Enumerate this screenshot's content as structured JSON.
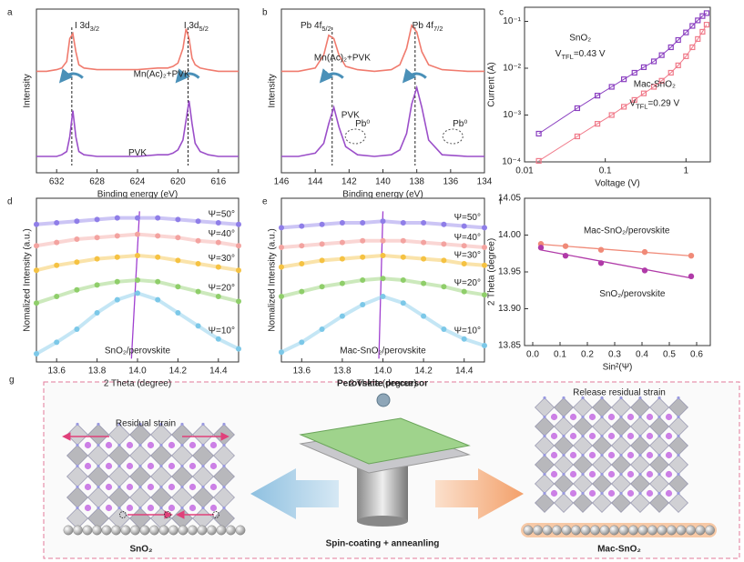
{
  "figure": {
    "panels": [
      "a",
      "b",
      "c",
      "d",
      "e",
      "f",
      "g"
    ],
    "g": {
      "left_title": "Residual strain",
      "center_title": "Perovskite precursor",
      "right_title": "Release residual strain",
      "left_caption": "SnO₂",
      "center_caption": "Spin-coating + anneanling",
      "right_caption": "Mac-SnO₂"
    }
  },
  "chart_data": [
    {
      "type": "line",
      "xlabel": "Binding energy (eV)",
      "ylabel": "Intensity",
      "xlim": [
        634,
        614
      ],
      "xticks": [
        632,
        628,
        624,
        620,
        616
      ],
      "ylim": [
        0,
        100
      ],
      "x": [
        634,
        633,
        632,
        631.5,
        631,
        630.7,
        630.4,
        630.1,
        629.8,
        629.3,
        628,
        626,
        624,
        622,
        621,
        620.5,
        620,
        619.5,
        619.2,
        618.9,
        618.6,
        618.3,
        617.8,
        617,
        616,
        614
      ],
      "series": [
        {
          "name": "Mn(Ac)₂+PVK",
          "color": "#f07b6e",
          "style": "line",
          "values": [
            62,
            62,
            63,
            64,
            68,
            82,
            85,
            74,
            66,
            64,
            63,
            63,
            63,
            64,
            64,
            65,
            67,
            76,
            88,
            82,
            70,
            66,
            64,
            63,
            62,
            62
          ]
        },
        {
          "name": "PVK",
          "color": "#9b4fc9",
          "style": "line",
          "values": [
            10,
            10,
            10,
            11,
            13,
            22,
            38,
            22,
            13,
            11,
            10,
            10,
            10,
            11,
            11,
            12,
            14,
            20,
            32,
            44,
            30,
            18,
            13,
            11,
            10,
            10
          ]
        }
      ],
      "peak_lines": [
        630.5,
        619.0
      ],
      "annotations": [
        {
          "parts": [
            "I 3d",
            "3/2"
          ],
          "color": "#222"
        },
        {
          "parts": [
            "I 3d",
            "5/2"
          ],
          "color": "#222"
        }
      ]
    },
    {
      "type": "line",
      "xlabel": "Binding energy (eV)",
      "ylabel": "Intensity",
      "xlim": [
        146,
        134
      ],
      "xticks": [
        146,
        144,
        142,
        140,
        138,
        136,
        134
      ],
      "ylim": [
        0,
        100
      ],
      "x": [
        146,
        145,
        144,
        143.5,
        143.2,
        142.9,
        142.6,
        142.2,
        141.5,
        140.5,
        139.5,
        139,
        138.6,
        138.3,
        138,
        137.7,
        137.3,
        136.5,
        135,
        134
      ],
      "series": [
        {
          "name": "Mn(Ac)₂+PVK",
          "color": "#f07b6e",
          "style": "line",
          "values": [
            62,
            62,
            64,
            72,
            84,
            82,
            72,
            65,
            63,
            62,
            63,
            66,
            76,
            90,
            86,
            74,
            66,
            63,
            62,
            62
          ]
        },
        {
          "name": "PVK",
          "color": "#9b4fc9",
          "style": "line",
          "values": [
            10,
            10,
            12,
            18,
            30,
            40,
            28,
            16,
            11,
            10,
            11,
            14,
            24,
            42,
            52,
            40,
            20,
            11,
            10,
            10
          ]
        }
      ],
      "peak_lines": [
        143.0,
        138.1
      ],
      "annotations": [
        {
          "parts": [
            "Pb 4f",
            "5/2"
          ],
          "color": "#222"
        },
        {
          "parts": [
            "Pb 4f",
            "7/2"
          ],
          "color": "#222"
        },
        {
          "parts": [
            "Pb⁰"
          ],
          "color": "#222"
        },
        {
          "parts": [
            "Pb⁰"
          ],
          "color": "#222"
        }
      ]
    },
    {
      "type": "scatter",
      "xlabel": "Voltage (V)",
      "ylabel": "Current (A)",
      "log_x": true,
      "log_y": true,
      "xlim": [
        0.01,
        2
      ],
      "xticks": [
        0.01,
        0.1,
        1
      ],
      "ylim": [
        0.0001,
        0.2
      ],
      "yticks": [
        {
          "value": 0.0001,
          "label": "10⁻⁴"
        },
        {
          "value": 0.001,
          "label": "10⁻³"
        },
        {
          "value": 0.01,
          "label": "10⁻²"
        },
        {
          "value": 0.1,
          "label": "10⁻¹"
        }
      ],
      "x": [
        0.015,
        0.045,
        0.08,
        0.12,
        0.17,
        0.23,
        0.3,
        0.4,
        0.5,
        0.65,
        0.8,
        1.0,
        1.2,
        1.4,
        1.6,
        1.8
      ],
      "series": [
        {
          "name": "SnO₂",
          "color": "#8a3fc0",
          "style": "squares",
          "values": [
            0.0004,
            0.0014,
            0.0026,
            0.004,
            0.0058,
            0.008,
            0.0105,
            0.014,
            0.019,
            0.028,
            0.04,
            0.058,
            0.08,
            0.105,
            0.13,
            0.15
          ]
        },
        {
          "name": "Mac-SnO₂",
          "color": "#f07a8a",
          "style": "squares",
          "values": [
            0.000105,
            0.00035,
            0.00065,
            0.001,
            0.0015,
            0.0021,
            0.0029,
            0.004,
            0.0054,
            0.008,
            0.0115,
            0.018,
            0.028,
            0.042,
            0.06,
            0.085
          ]
        }
      ],
      "annotations": [
        {
          "parts": [
            "V",
            "TFL",
            "=0.43 V"
          ],
          "color": "#8a3fc0"
        },
        {
          "parts": [
            "V",
            "TFL",
            "=0.29 V"
          ],
          "color": "#f05a78"
        }
      ]
    },
    {
      "type": "line",
      "xlabel": "2 Theta (degree)",
      "ylabel": "Nomalized Intensity (a.u.)",
      "xlim": [
        13.5,
        14.5
      ],
      "xticks": [
        13.6,
        13.8,
        {
          "value": 14,
          "label": "14.0"
        },
        14.2,
        14.4
      ],
      "ylim": [
        0,
        100
      ],
      "x": [
        13.5,
        13.6,
        13.7,
        13.8,
        13.9,
        14.0,
        14.1,
        14.2,
        14.3,
        14.4,
        14.5
      ],
      "series": [
        {
          "name": "Ψ=50°",
          "color": "#8f7ee8",
          "style": "dots",
          "values": [
            84,
            85,
            86,
            87,
            88,
            88,
            88,
            87,
            86,
            85,
            84
          ]
        },
        {
          "name": "Ψ=40°",
          "color": "#f3a3a0",
          "style": "dots",
          "values": [
            71,
            73,
            75,
            76,
            77,
            78,
            77,
            76,
            74,
            73,
            71
          ]
        },
        {
          "name": "Ψ=30°",
          "color": "#f5c242",
          "style": "dots",
          "values": [
            56,
            59,
            61,
            63,
            64,
            65,
            64,
            62,
            60,
            58,
            56
          ]
        },
        {
          "name": "Ψ=20°",
          "color": "#8fce6a",
          "style": "dots",
          "values": [
            36,
            40,
            44,
            47,
            49,
            50,
            49,
            46,
            43,
            40,
            37
          ]
        },
        {
          "name": "Ψ=10°",
          "color": "#7cc8e8",
          "style": "dots",
          "values": [
            5,
            12,
            20,
            30,
            38,
            42,
            38,
            30,
            22,
            14,
            8
          ]
        }
      ],
      "trend_line": {
        "x": [
          13.97,
          14.01
        ],
        "y": [
          2,
          92
        ],
        "color": "#a040d0"
      },
      "annotations": [
        {
          "parts": [
            "SnO₂/perovskite"
          ],
          "color": "#a040d0"
        }
      ]
    },
    {
      "type": "line",
      "xlabel": "2 Theta (degree)",
      "ylabel": "Nomalized Intensity (a.u.)",
      "xlim": [
        13.5,
        14.5
      ],
      "xticks": [
        13.6,
        13.8,
        {
          "value": 14,
          "label": "14.0"
        },
        14.2,
        14.4
      ],
      "ylim": [
        0,
        100
      ],
      "x": [
        13.5,
        13.6,
        13.7,
        13.8,
        13.9,
        14.0,
        14.1,
        14.2,
        14.3,
        14.4,
        14.5
      ],
      "series": [
        {
          "name": "Ψ=50°",
          "color": "#8f7ee8",
          "style": "dots",
          "values": [
            82,
            83,
            84,
            85,
            85,
            86,
            85,
            85,
            84,
            83,
            82
          ]
        },
        {
          "name": "Ψ=40°",
          "color": "#f3a3a0",
          "style": "dots",
          "values": [
            70,
            71,
            72,
            73,
            74,
            74,
            74,
            73,
            72,
            71,
            70
          ]
        },
        {
          "name": "Ψ=30°",
          "color": "#f5c242",
          "style": "dots",
          "values": [
            58,
            60,
            62,
            63,
            64,
            65,
            64,
            63,
            62,
            60,
            59
          ]
        },
        {
          "name": "Ψ=20°",
          "color": "#8fce6a",
          "style": "dots",
          "values": [
            40,
            43,
            46,
            48,
            50,
            51,
            50,
            48,
            46,
            43,
            41
          ]
        },
        {
          "name": "Ψ=10°",
          "color": "#7cc8e8",
          "style": "dots",
          "values": [
            6,
            12,
            20,
            28,
            35,
            40,
            36,
            28,
            20,
            14,
            10
          ]
        }
      ],
      "trend_line": {
        "x": [
          13.98,
          14.0
        ],
        "y": [
          2,
          92
        ],
        "color": "#a040d0"
      },
      "annotations": [
        {
          "parts": [
            "Mac-SnO₂/perovskite"
          ],
          "color": "#a040d0"
        }
      ]
    },
    {
      "type": "scatter",
      "xlabel": "Sin²(Ψ)",
      "ylabel": "2 Theta (degree)",
      "xlim": [
        -0.03,
        0.65
      ],
      "xticks": [
        {
          "value": 0,
          "label": "0.0"
        },
        0.1,
        0.2,
        0.3,
        0.4,
        0.5,
        0.6
      ],
      "ylim": [
        13.85,
        14.05
      ],
      "yticks": [
        13.85,
        {
          "value": 13.9,
          "label": "13.90"
        },
        13.95,
        {
          "value": 14,
          "label": "14.00"
        },
        14.05
      ],
      "x": [
        0.03,
        0.12,
        0.25,
        0.41,
        0.58
      ],
      "series": [
        {
          "name": "Mac-SnO₂/perovskite",
          "color": "#f08a78",
          "style": "circles_fit",
          "values": [
            13.988,
            13.985,
            13.98,
            13.977,
            13.972
          ]
        },
        {
          "name": "SnO₂/perovskite",
          "color": "#b03aa8",
          "style": "circles_fit",
          "values": [
            13.983,
            13.972,
            13.962,
            13.952,
            13.944
          ]
        }
      ]
    }
  ]
}
